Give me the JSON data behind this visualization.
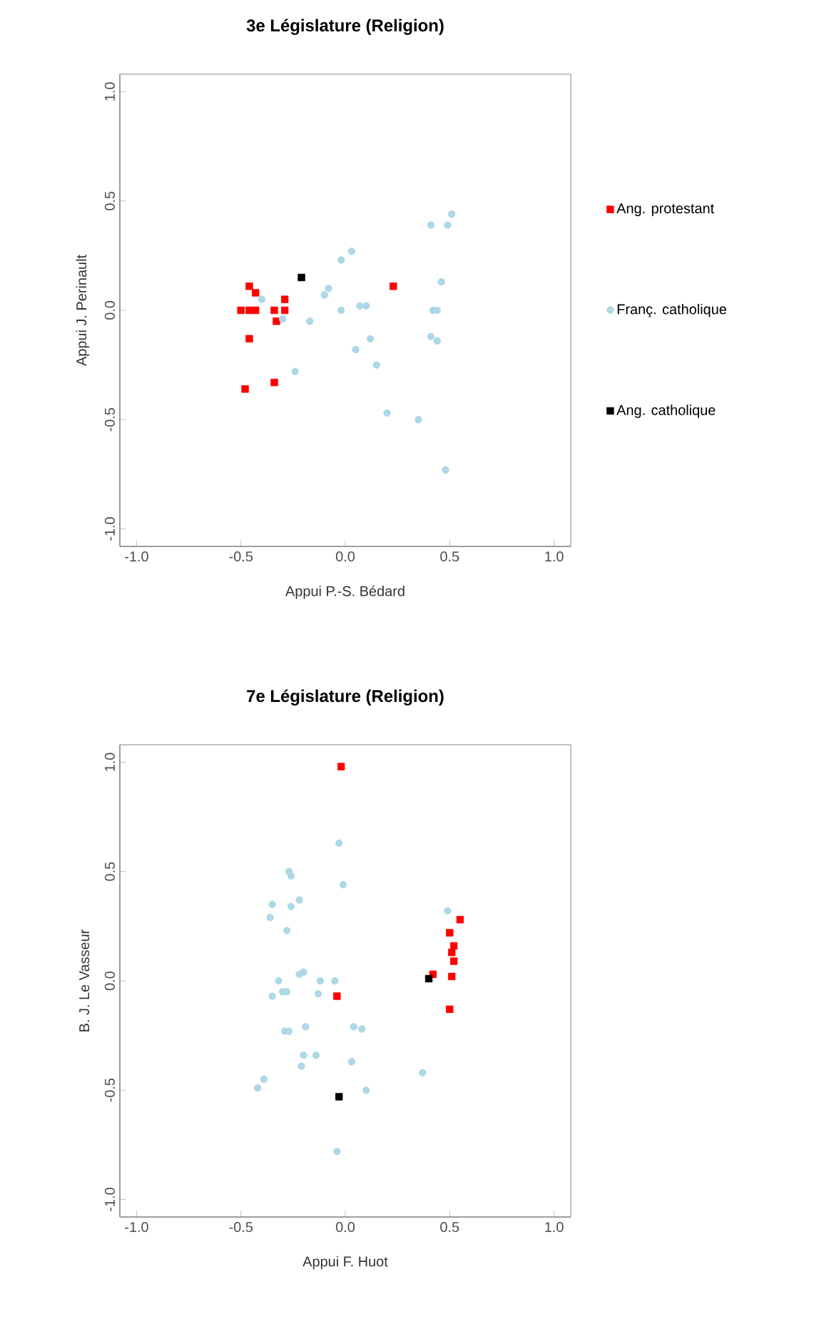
{
  "chart_data": [
    {
      "type": "scatter",
      "title": "3e Législature (Religion)",
      "xlabel": "Appui P.-S. Bédard",
      "ylabel": "Appui J. Perinault",
      "xlim": [
        -1.08,
        1.08
      ],
      "ylim": [
        -1.08,
        1.08
      ],
      "xticks": [
        {
          "value": -1,
          "label": "-1.0"
        },
        {
          "value": -0.5,
          "label": "-0.5"
        },
        {
          "value": 0,
          "label": "0.0"
        },
        {
          "value": 0.5,
          "label": "0.5"
        },
        {
          "value": 1,
          "label": "1.0"
        }
      ],
      "yticks": [
        {
          "value": -1,
          "label": "-1.0"
        },
        {
          "value": -0.5,
          "label": "-0.5"
        },
        {
          "value": 0,
          "label": "0.0"
        },
        {
          "value": 0.5,
          "label": "0.5"
        },
        {
          "value": 1,
          "label": "1.0"
        }
      ],
      "legend": "right",
      "grid": false,
      "series": [
        {
          "name": "Ang. protestant",
          "color": "#ff0000",
          "marker": "square",
          "x": [
            -0.46,
            -0.43,
            -0.29,
            -0.5,
            -0.46,
            -0.43,
            -0.34,
            -0.29,
            -0.33,
            -0.46,
            -0.34,
            -0.48,
            0.23
          ],
          "values": [
            0.11,
            0.08,
            0.05,
            0.0,
            0.0,
            0.0,
            0.0,
            0.0,
            -0.05,
            -0.13,
            -0.33,
            -0.36,
            0.11
          ]
        },
        {
          "name": "Franç. catholique",
          "color": "#add8e6",
          "marker": "circle",
          "x": [
            0.51,
            0.41,
            0.49,
            0.03,
            -0.02,
            -0.08,
            -0.1,
            -0.4,
            0.46,
            0.07,
            0.1,
            -0.02,
            0.42,
            0.44,
            -0.3,
            -0.17,
            0.12,
            0.05,
            0.41,
            0.44,
            0.15,
            -0.24,
            0.2,
            0.35,
            0.48
          ],
          "values": [
            0.44,
            0.39,
            0.39,
            0.27,
            0.23,
            0.1,
            0.07,
            0.05,
            0.13,
            0.02,
            0.02,
            0.0,
            0.0,
            0.0,
            -0.04,
            -0.05,
            -0.13,
            -0.18,
            -0.12,
            -0.14,
            -0.25,
            -0.28,
            -0.47,
            -0.5,
            -0.73
          ]
        },
        {
          "name": "Ang. catholique",
          "color": "#000000",
          "marker": "square",
          "x": [
            -0.21
          ],
          "values": [
            0.15
          ]
        }
      ]
    },
    {
      "type": "scatter",
      "title": "7e Législature (Religion)",
      "xlabel": "Appui F. Huot",
      "ylabel": "B. J. Le Vasseur",
      "xlim": [
        -1.08,
        1.08
      ],
      "ylim": [
        -1.08,
        1.08
      ],
      "xticks": [
        {
          "value": -1,
          "label": "-1.0"
        },
        {
          "value": -0.5,
          "label": "-0.5"
        },
        {
          "value": 0,
          "label": "0.0"
        },
        {
          "value": 0.5,
          "label": "0.5"
        },
        {
          "value": 1,
          "label": "1.0"
        }
      ],
      "yticks": [
        {
          "value": -1,
          "label": "-1.0"
        },
        {
          "value": -0.5,
          "label": "-0.5"
        },
        {
          "value": 0,
          "label": "0.0"
        },
        {
          "value": 0.5,
          "label": "0.5"
        },
        {
          "value": 1,
          "label": "1.0"
        }
      ],
      "grid": false,
      "series": [
        {
          "color": "#add8e6",
          "marker": "circle",
          "x": [
            -0.03,
            -0.27,
            -0.26,
            -0.01,
            -0.22,
            -0.35,
            -0.26,
            -0.36,
            -0.28,
            0.49,
            -0.22,
            -0.2,
            -0.32,
            -0.12,
            -0.05,
            -0.35,
            -0.3,
            -0.28,
            -0.13,
            -0.29,
            -0.27,
            -0.19,
            0.04,
            0.08,
            -0.2,
            -0.14,
            -0.21,
            0.03,
            0.37,
            -0.39,
            -0.42,
            0.1,
            -0.04
          ],
          "values": [
            0.63,
            0.5,
            0.48,
            0.44,
            0.37,
            0.35,
            0.34,
            0.29,
            0.23,
            0.32,
            0.03,
            0.04,
            0.0,
            0.0,
            0.0,
            -0.07,
            -0.05,
            -0.05,
            -0.06,
            -0.23,
            -0.23,
            -0.21,
            -0.21,
            -0.22,
            -0.34,
            -0.34,
            -0.39,
            -0.37,
            -0.42,
            -0.45,
            -0.49,
            -0.5,
            -0.78
          ]
        },
        {
          "color": "#ff0000",
          "marker": "square",
          "x": [
            -0.02,
            -0.04,
            0.55,
            0.5,
            0.52,
            0.51,
            0.52,
            0.42,
            0.51,
            0.5
          ],
          "values": [
            0.98,
            -0.07,
            0.28,
            0.22,
            0.16,
            0.13,
            0.09,
            0.03,
            0.02,
            -0.13
          ]
        },
        {
          "color": "#000000",
          "marker": "square",
          "x": [
            0.4,
            -0.03
          ],
          "values": [
            0.01,
            -0.53
          ]
        }
      ]
    }
  ]
}
